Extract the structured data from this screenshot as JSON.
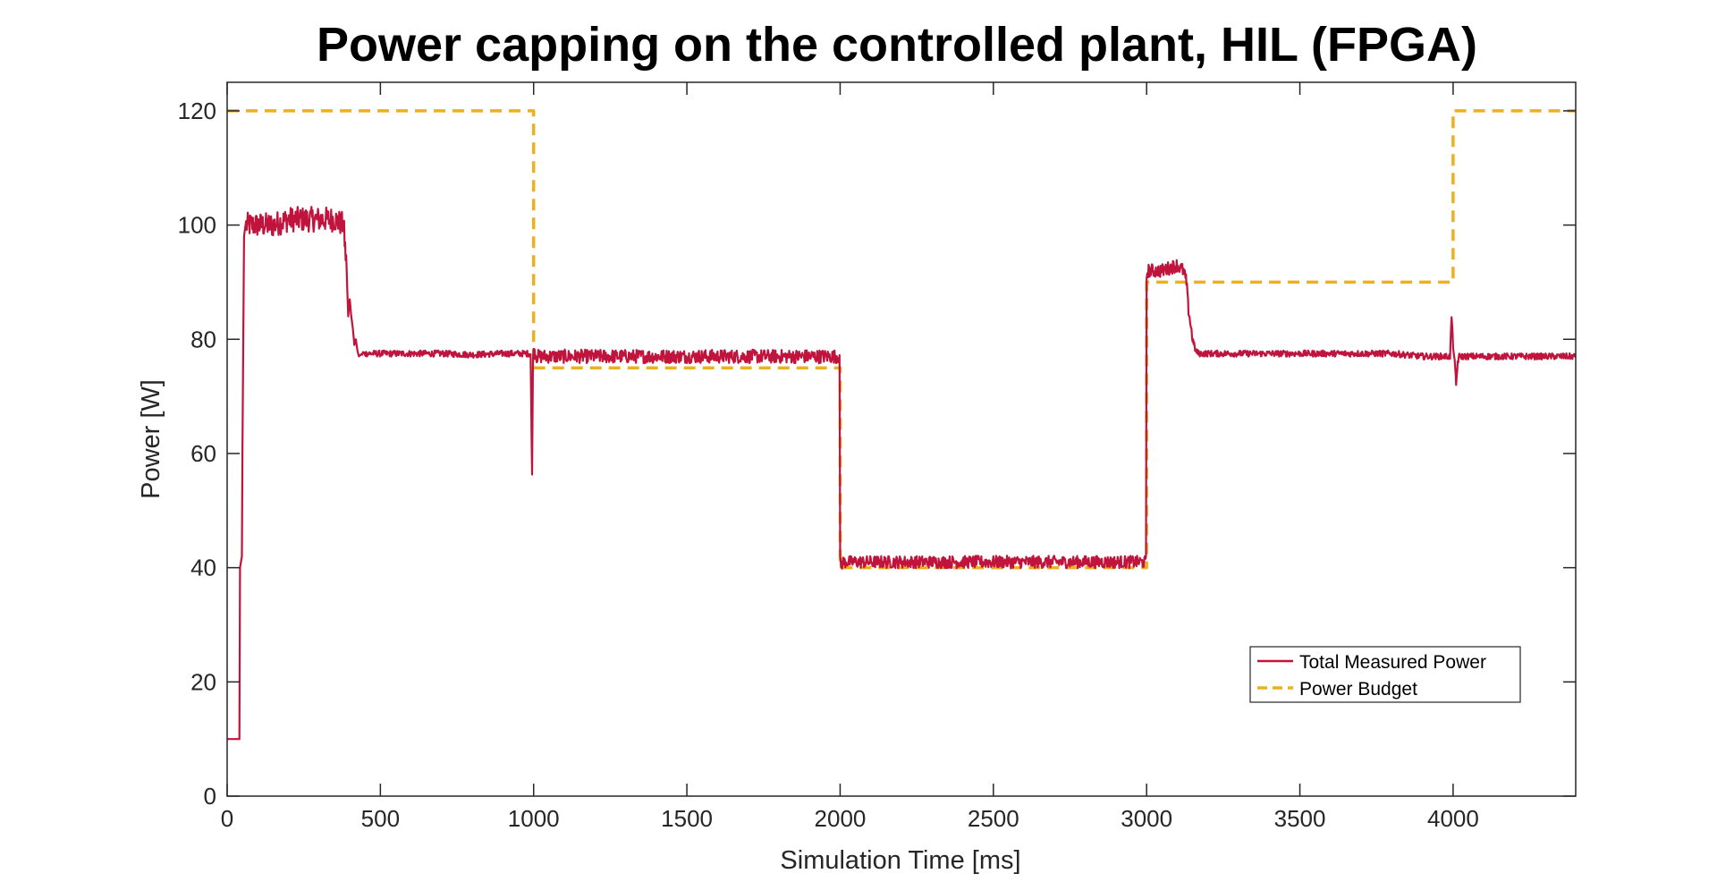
{
  "chart_data": {
    "type": "line",
    "title": "Power capping on the controlled plant, HIL (FPGA)",
    "xlabel": "Simulation Time [ms]",
    "ylabel": "Power [W]",
    "xlim": [
      0,
      4400
    ],
    "ylim": [
      0,
      125
    ],
    "x_ticks": [
      0,
      500,
      1000,
      1500,
      2000,
      2500,
      3000,
      3500,
      4000
    ],
    "y_ticks": [
      0,
      20,
      40,
      60,
      80,
      100,
      120
    ],
    "x_tick_labels": [
      "0",
      "500",
      "1000",
      "1500",
      "2000",
      "2500",
      "3000",
      "3500",
      "4000"
    ],
    "y_tick_labels": [
      "0",
      "20",
      "40",
      "60",
      "80",
      "100",
      "120"
    ],
    "grid": false,
    "legend_position": "bottom-right",
    "series": [
      {
        "name": "Total Measured Power",
        "color": "#C0143C",
        "style": "solid",
        "x": [
          0,
          40,
          42,
          48,
          50,
          55,
          60,
          75,
          100,
          150,
          200,
          250,
          300,
          350,
          380,
          390,
          395,
          400,
          405,
          410,
          415,
          420,
          425,
          430,
          440,
          450,
          500,
          600,
          700,
          800,
          900,
          950,
          990,
          995,
          998,
          1000,
          1003,
          1010,
          1030,
          1100,
          1200,
          1300,
          1400,
          1500,
          1600,
          1700,
          1800,
          1900,
          1998,
          2000,
          2003,
          2010,
          2100,
          2200,
          2300,
          2400,
          2500,
          2600,
          2700,
          2800,
          2900,
          2998,
          3000,
          3003,
          3010,
          3050,
          3100,
          3120,
          3130,
          3135,
          3140,
          3145,
          3150,
          3155,
          3160,
          3170,
          3200,
          3300,
          3400,
          3500,
          3600,
          3700,
          3800,
          3900,
          3990,
          3995,
          4000,
          4005,
          4010,
          4015,
          4020,
          4040,
          4100,
          4200,
          4300,
          4400
        ],
        "y": [
          10,
          10,
          40,
          42,
          60,
          98,
          100,
          100,
          100,
          100,
          101,
          101,
          101,
          101,
          100,
          92,
          84,
          87,
          84,
          82,
          79,
          80,
          78,
          77,
          77.5,
          77.5,
          77.5,
          77.5,
          77.5,
          77.3,
          77.5,
          77.5,
          77.5,
          56,
          77,
          77.5,
          78,
          77,
          77,
          77,
          77,
          77,
          77,
          77,
          77,
          77,
          77,
          77,
          77,
          41,
          40.5,
          41,
          41,
          41,
          41,
          41,
          41,
          41,
          41,
          41,
          41,
          41,
          91,
          92,
          92,
          92,
          93,
          92,
          90,
          86,
          84,
          82,
          80,
          79,
          78,
          77.5,
          77.5,
          77.5,
          77.5,
          77.5,
          77.5,
          77.5,
          77.5,
          77,
          77,
          84,
          79,
          76,
          72,
          76,
          77,
          77,
          77,
          77,
          77,
          77
        ]
      },
      {
        "name": "Power Budget",
        "color": "#EDB120",
        "style": "dashed",
        "x": [
          0,
          1000,
          1000,
          2000,
          2000,
          3000,
          3000,
          4000,
          4000,
          4400
        ],
        "y": [
          120,
          120,
          75,
          75,
          40,
          40,
          90,
          90,
          120,
          120
        ]
      }
    ]
  }
}
